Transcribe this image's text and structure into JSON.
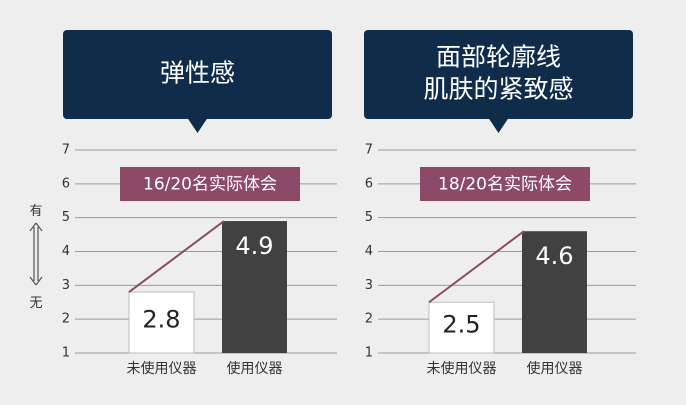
{
  "colors": {
    "background": "#eeeeee",
    "banner": "#0f2c4b",
    "badge": "#8c4a68",
    "bar_before": "#ffffff",
    "bar_after": "#414141",
    "trend_line": "#8c4a68",
    "grid": "#9a9a9a"
  },
  "side_axis": {
    "top_label": "有",
    "bottom_label": "无",
    "icon": "double-arrow-vertical-icon"
  },
  "chart_data": [
    {
      "type": "bar",
      "title": "弹性感",
      "badge": "16/20名实际体会",
      "categories": [
        "未使用仪器",
        "使用仪器"
      ],
      "values": [
        2.8,
        4.9
      ],
      "value_labels": [
        "2.8",
        "4.9"
      ],
      "ylim": [
        1,
        7
      ],
      "yticks": [
        1,
        2,
        3,
        4,
        5,
        6,
        7
      ],
      "grid": true,
      "trend_line": true
    },
    {
      "type": "bar",
      "title": "面部轮廓线\n肌肤的紧致感",
      "badge": "18/20名实际体会",
      "categories": [
        "未使用仪器",
        "使用仪器"
      ],
      "values": [
        2.5,
        4.6
      ],
      "value_labels": [
        "2.5",
        "4.6"
      ],
      "ylim": [
        1,
        7
      ],
      "yticks": [
        1,
        2,
        3,
        4,
        5,
        6,
        7
      ],
      "grid": true,
      "trend_line": true
    }
  ]
}
